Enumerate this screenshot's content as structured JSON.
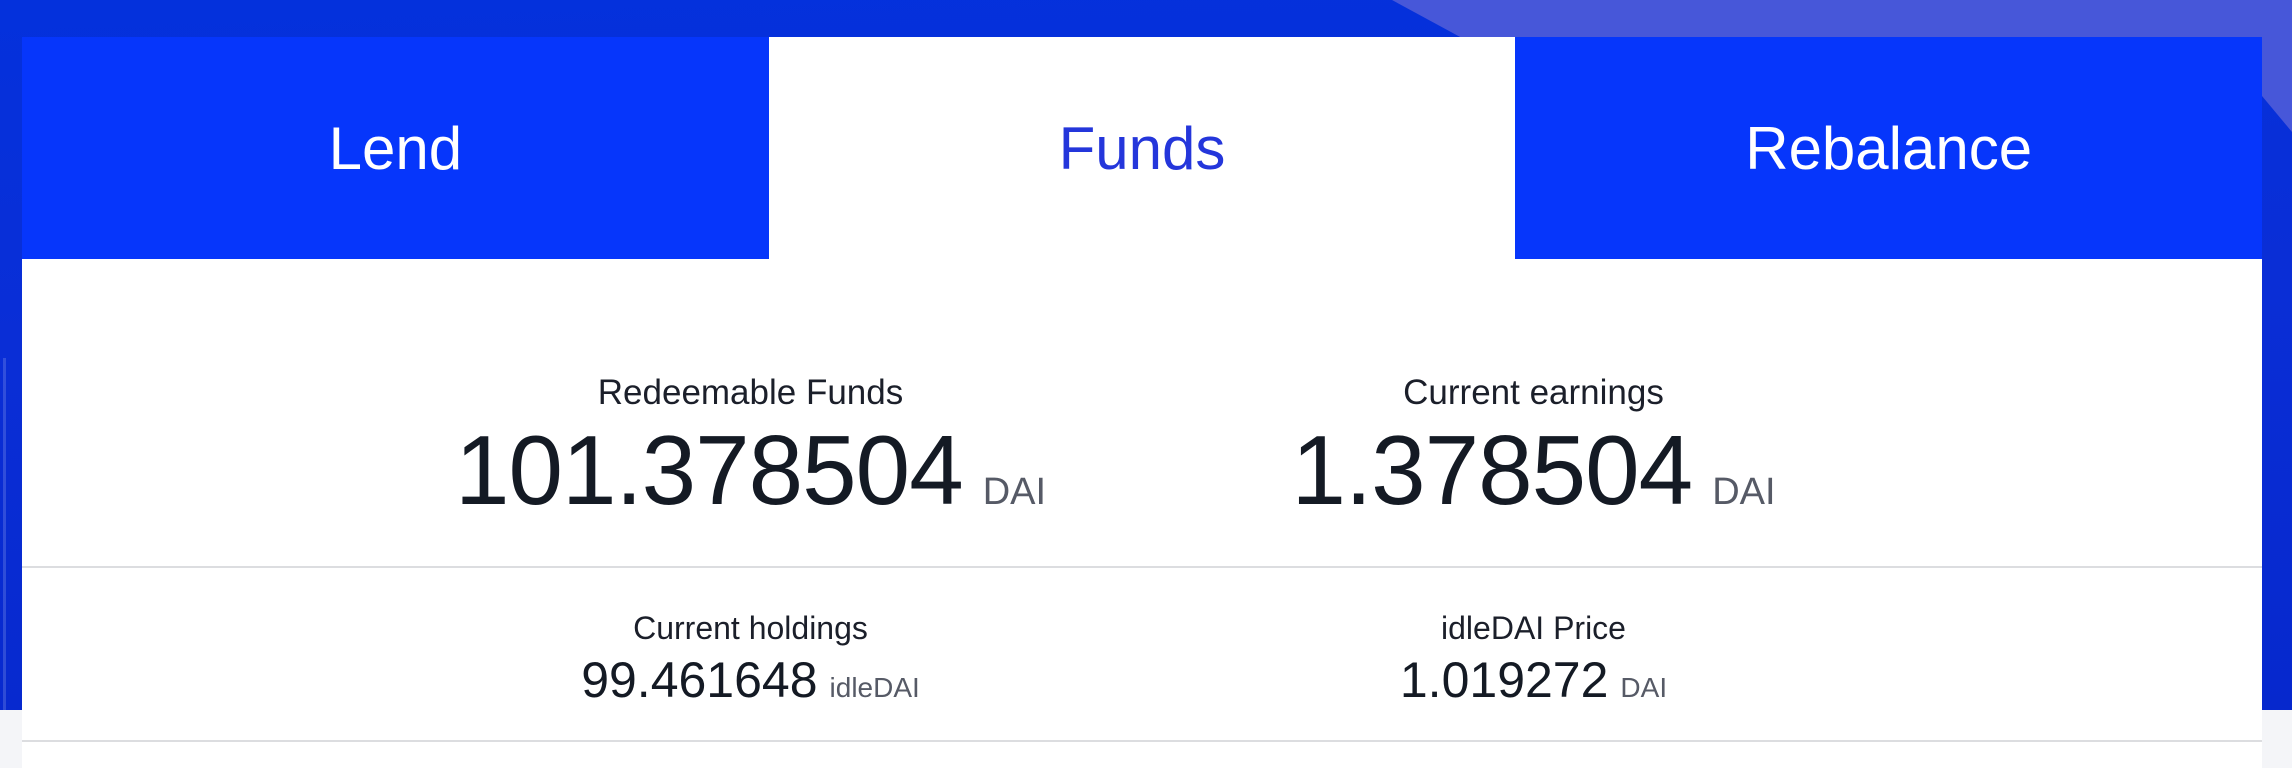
{
  "colors": {
    "brand_blue": "#0636fb",
    "active_tab_text": "#2436db",
    "top_band_blue": "#0431dc",
    "light_diagonal_band": "#4757d9",
    "page_blue_bottom": "#0628cd",
    "text_dark": "#141a24",
    "text_label": "#1b1f2a",
    "text_unit_gray": "#565a66",
    "divider_gray": "#dcdde0",
    "bottom_strip_gray": "#f4f5f8"
  },
  "tabs": [
    {
      "label": "Lend",
      "active": false
    },
    {
      "label": "Funds",
      "active": true
    },
    {
      "label": "Rebalance",
      "active": false
    }
  ],
  "stats": {
    "primary": [
      {
        "label": "Redeemable Funds",
        "value": "101.378504",
        "unit": "DAI"
      },
      {
        "label": "Current earnings",
        "value": "1.378504",
        "unit": "DAI"
      }
    ],
    "secondary": [
      {
        "label": "Current holdings",
        "value": "99.461648",
        "unit": "idleDAI"
      },
      {
        "label": "idleDAI Price",
        "value": "1.019272",
        "unit": "DAI"
      }
    ]
  }
}
